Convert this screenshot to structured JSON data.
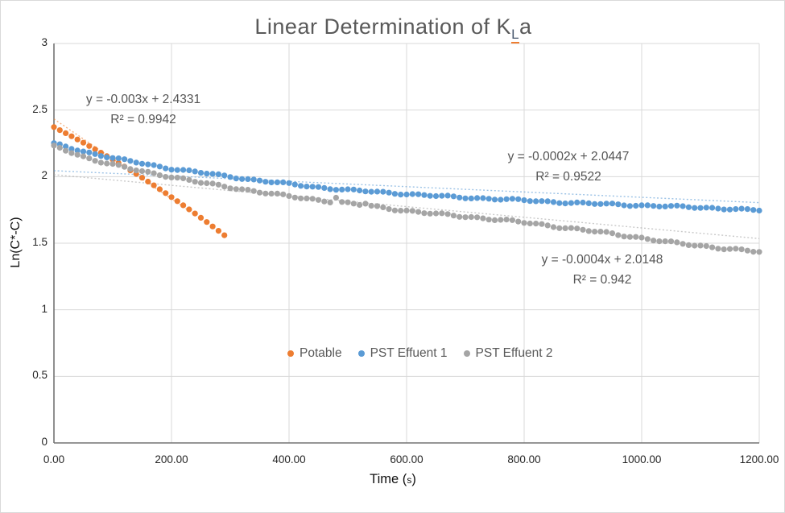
{
  "chart_data": {
    "type": "scatter",
    "title": {
      "prefix": "Linear Determination of K",
      "subscript": "L",
      "suffix": "a"
    },
    "xlabel": {
      "prefix": "Time (",
      "small": "s",
      "suffix": ")"
    },
    "ylabel": "Ln(C*-C)",
    "x_axis": {
      "min": 0,
      "max": 1200,
      "tick_values": [
        0,
        200,
        400,
        600,
        800,
        1000,
        1200
      ],
      "tick_labels": [
        "0.00",
        "200.00",
        "400.00",
        "600.00",
        "800.00",
        "1000.00",
        "1200.00"
      ]
    },
    "y_axis": {
      "min": 0,
      "max": 3,
      "tick_values": [
        0,
        0.5,
        1,
        1.5,
        2,
        2.5,
        3
      ],
      "tick_labels": [
        "0",
        "0.5",
        "1",
        "1.5",
        "2",
        "2.5",
        "3"
      ]
    },
    "grid": true,
    "legend_position": "bottom-center",
    "point_interval_s": 10,
    "series": [
      {
        "name": "Potable",
        "color": "#ED7D31",
        "points": [
          [
            0,
            2.372
          ],
          [
            10,
            2.349
          ],
          [
            20,
            2.326
          ],
          [
            30,
            2.303
          ],
          [
            40,
            2.279
          ],
          [
            50,
            2.255
          ],
          [
            60,
            2.23
          ],
          [
            70,
            2.205
          ],
          [
            80,
            2.18
          ],
          [
            90,
            2.154
          ],
          [
            100,
            2.128
          ],
          [
            110,
            2.102
          ],
          [
            120,
            2.075
          ],
          [
            130,
            2.047
          ],
          [
            140,
            2.02
          ],
          [
            150,
            1.992
          ],
          [
            160,
            1.963
          ],
          [
            170,
            1.935
          ],
          [
            180,
            1.905
          ],
          [
            190,
            1.876
          ],
          [
            200,
            1.846
          ],
          [
            210,
            1.816
          ],
          [
            220,
            1.785
          ],
          [
            230,
            1.754
          ],
          [
            240,
            1.723
          ],
          [
            250,
            1.691
          ],
          [
            260,
            1.659
          ],
          [
            270,
            1.626
          ],
          [
            280,
            1.593
          ],
          [
            290,
            1.56
          ]
        ],
        "trend": {
          "slope": -0.003,
          "intercept": 2.4331,
          "r2": 0.9942,
          "equation": "y = -0.003x + 2.4331",
          "r2_text": "R² = 0.9942",
          "x_range": [
            0,
            295
          ]
        }
      },
      {
        "name": "PST Effuent 1",
        "color": "#5B9BD5",
        "jitter": 0.005,
        "anchors": [
          [
            0,
            2.245
          ],
          [
            50,
            2.19
          ],
          [
            100,
            2.14
          ],
          [
            150,
            2.1
          ],
          [
            200,
            2.06
          ],
          [
            250,
            2.03
          ],
          [
            300,
            2.0
          ],
          [
            350,
            1.97
          ],
          [
            400,
            1.945
          ],
          [
            450,
            1.92
          ],
          [
            500,
            1.9
          ],
          [
            550,
            1.885
          ],
          [
            600,
            1.87
          ],
          [
            650,
            1.855
          ],
          [
            700,
            1.843
          ],
          [
            750,
            1.833
          ],
          [
            800,
            1.822
          ],
          [
            850,
            1.81
          ],
          [
            900,
            1.8
          ],
          [
            950,
            1.792
          ],
          [
            1000,
            1.784
          ],
          [
            1050,
            1.776
          ],
          [
            1100,
            1.768
          ],
          [
            1150,
            1.758
          ],
          [
            1200,
            1.747
          ]
        ],
        "trend": {
          "slope": -0.0002,
          "intercept": 2.0447,
          "r2": 0.9522,
          "equation": "y = -0.0002x + 2.0447",
          "r2_text": "R² = 0.9522",
          "x_range": [
            0,
            1200
          ]
        }
      },
      {
        "name": "PST Effuent 2",
        "color": "#A5A5A5",
        "jitter": 0.006,
        "overrides": {
          "480": 0.035,
          "530": 0.015
        },
        "anchors": [
          [
            0,
            2.225
          ],
          [
            50,
            2.15
          ],
          [
            100,
            2.09
          ],
          [
            150,
            2.04
          ],
          [
            200,
            2.0
          ],
          [
            250,
            1.955
          ],
          [
            300,
            1.92
          ],
          [
            350,
            1.885
          ],
          [
            400,
            1.852
          ],
          [
            450,
            1.825
          ],
          [
            500,
            1.8
          ],
          [
            550,
            1.772
          ],
          [
            600,
            1.745
          ],
          [
            650,
            1.72
          ],
          [
            700,
            1.7
          ],
          [
            750,
            1.68
          ],
          [
            800,
            1.655
          ],
          [
            850,
            1.628
          ],
          [
            900,
            1.6
          ],
          [
            950,
            1.57
          ],
          [
            1000,
            1.54
          ],
          [
            1050,
            1.505
          ],
          [
            1100,
            1.48
          ],
          [
            1150,
            1.458
          ],
          [
            1200,
            1.435
          ]
        ],
        "trend": {
          "slope": -0.0004,
          "intercept": 2.0148,
          "r2": 0.942,
          "equation": "y = -0.0004x + 2.0148",
          "r2_text": "R² = 0.942",
          "x_range": [
            0,
            1200
          ]
        }
      }
    ]
  },
  "layout_colors": {
    "gridline": "#d9d9d9",
    "axis_line": "#737373",
    "title_text": "#595959",
    "tick_text": "#262626"
  }
}
